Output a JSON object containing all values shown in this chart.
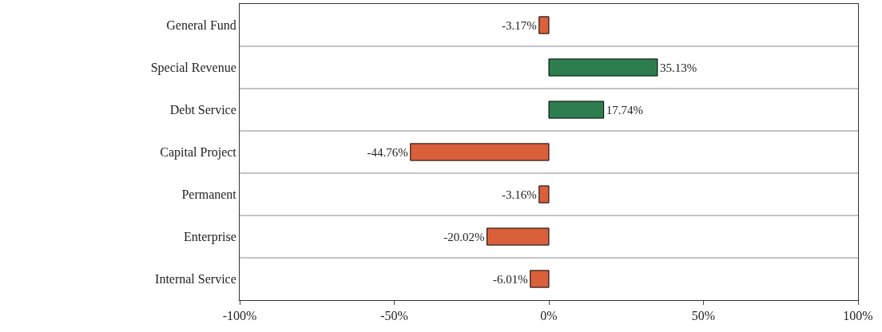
{
  "chart_data": {
    "type": "bar",
    "orientation": "horizontal",
    "categories": [
      "General Fund",
      "Special Revenue",
      "Debt Service",
      "Capital Project",
      "Permanent",
      "Enterprise",
      "Internal Service"
    ],
    "values": [
      -3.17,
      35.13,
      17.74,
      -44.76,
      -3.16,
      -20.02,
      -6.01
    ],
    "colors": [
      "#d9603b",
      "#2e7d4f",
      "#2e7d4f",
      "#d9603b",
      "#d9603b",
      "#d9603b",
      "#d9603b"
    ],
    "value_labels": [
      "-3.17%",
      "35.13%",
      "17.74%",
      "-44.76%",
      "-3.16%",
      "-20.02%",
      "-6.01%"
    ],
    "xlim": [
      -100,
      100
    ],
    "xticks": [
      {
        "value": -100,
        "label": "-100%"
      },
      {
        "value": -50,
        "label": "-50%"
      },
      {
        "value": 0,
        "label": "0%"
      },
      {
        "value": 50,
        "label": "50%"
      },
      {
        "value": 100,
        "label": "100%"
      }
    ],
    "grid": "y",
    "legend": false
  }
}
